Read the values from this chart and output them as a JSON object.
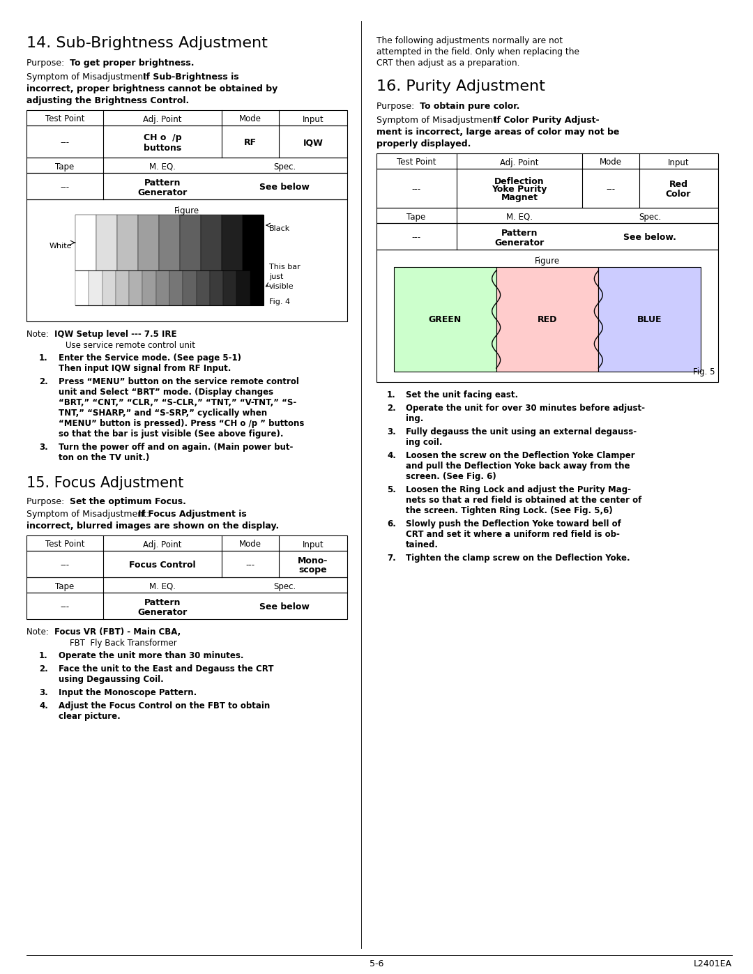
{
  "page_bg": "#ffffff",
  "page_width": 10.8,
  "page_height": 13.97,
  "section14_title": "14. Sub-Brightness Adjustment",
  "section15_title": "15. Focus Adjustment",
  "section16_title": "16. Purity Adjustment",
  "footer_left": "5-6",
  "footer_right": "L2401EA",
  "table_headers": [
    "Test Point",
    "Adj. Point",
    "Mode",
    "Input"
  ],
  "right_intro_lines": [
    "The following adjustments normally are not",
    "attempted in the field. Only when replacing the",
    "CRT then adjust as a preparation."
  ],
  "sec14_steps": [
    [
      "Enter the Service mode. (See page 5-1)",
      "Then input IQW signal from RF Input."
    ],
    [
      "Press “MENU” button on the service remote control",
      "unit and Select “BRT” mode. (Display changes",
      "“BRT,” “CNT,” “CLR,” “S-CLR,” “TNT,” “V-TNT,” “S-",
      "TNT,” “SHARP,” and “S-SRP,” cyclically when",
      "“MENU” button is pressed). Press “CH o /p ” buttons",
      "so that the bar is just visible (See above figure)."
    ],
    [
      "Turn the power off and on again. (Main power but-",
      "ton on the TV unit.)"
    ]
  ],
  "sec15_steps": [
    [
      "Operate the unit more than 30 minutes."
    ],
    [
      "Face the unit to the East and Degauss the CRT",
      "using Degaussing Coil."
    ],
    [
      "Input the Monoscope Pattern."
    ],
    [
      "Adjust the Focus Control on the FBT to obtain",
      "clear picture."
    ]
  ],
  "sec16_steps": [
    [
      "Set the unit facing east."
    ],
    [
      "Operate the unit for over 30 minutes before adjust-",
      "ing."
    ],
    [
      "Fully degauss the unit using an external degauss-",
      "ing coil."
    ],
    [
      "Loosen the screw on the Deflection Yoke Clamper",
      "and pull the Deflection Yoke back away from the",
      "screen. (See Fig. 6)"
    ],
    [
      "Loosen the Ring Lock and adjust the Purity Mag-",
      "nets so that a red field is obtained at the center of",
      "the screen. Tighten Ring Lock. (See Fig. 5,6)"
    ],
    [
      "Slowly push the Deflection Yoke toward bell of",
      "CRT and set it where a uniform red field is ob-",
      "tained."
    ],
    [
      "Tighten the clamp screw on the Deflection Yoke."
    ]
  ]
}
